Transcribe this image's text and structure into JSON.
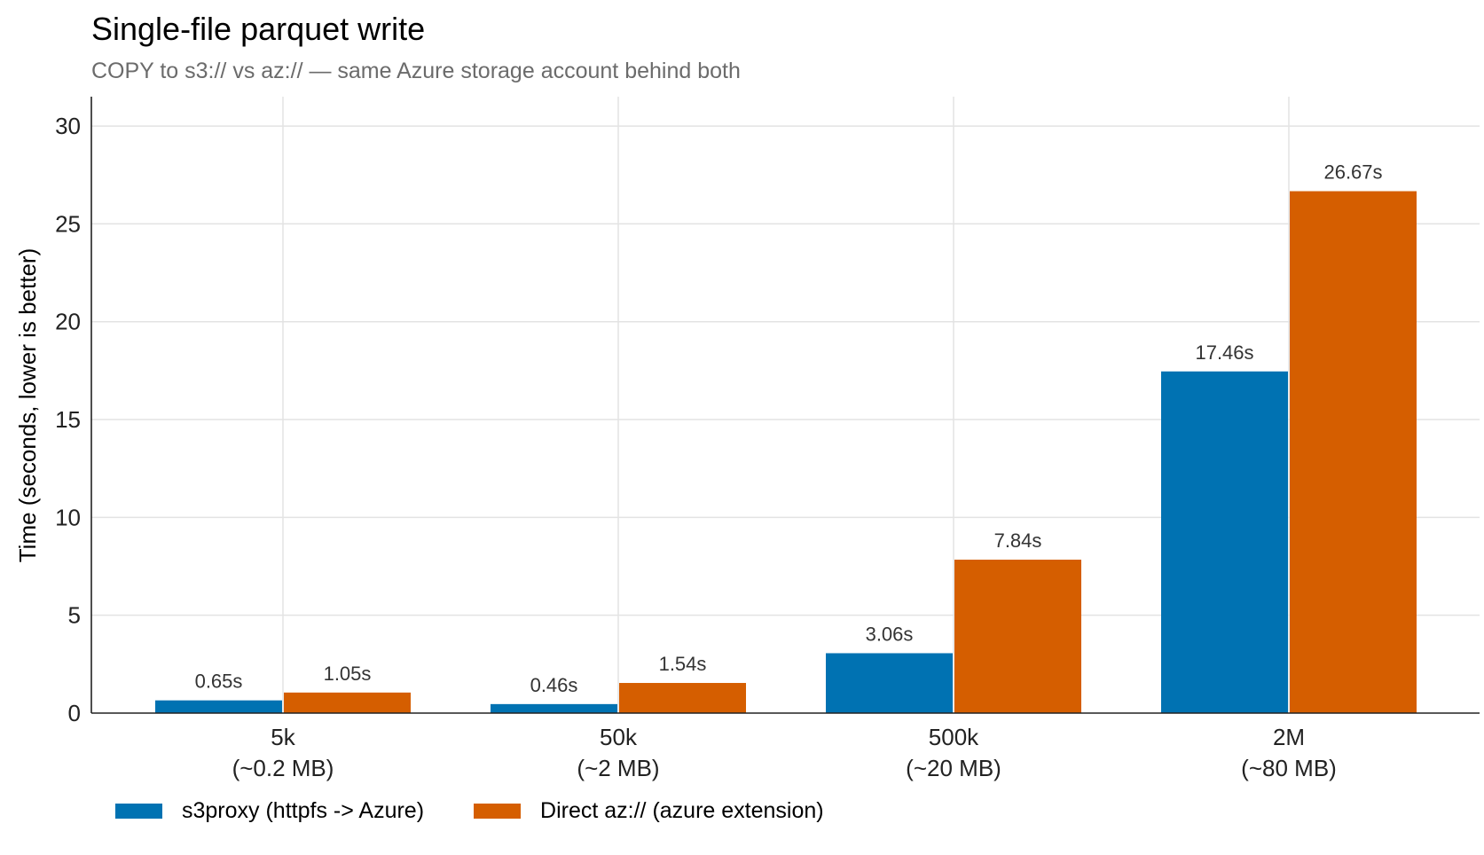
{
  "chart_data": {
    "type": "bar",
    "title": "Single-file parquet write",
    "subtitle": "COPY to s3:// vs az:// — same Azure storage account behind both",
    "xlabel": "",
    "ylabel": "Time (seconds, lower is better)",
    "ylim": [
      0,
      31.5
    ],
    "yticks": [
      "0",
      "5",
      "10",
      "15",
      "20",
      "25",
      "30"
    ],
    "categories": [
      [
        "5k",
        "(~0.2 MB)"
      ],
      [
        "50k",
        "(~2 MB)"
      ],
      [
        "500k",
        "(~20 MB)"
      ],
      [
        "2M",
        "(~80 MB)"
      ]
    ],
    "series": [
      {
        "name": "s3proxy (httpfs -> Azure)",
        "color": "#0072b2",
        "values": [
          0.65,
          0.46,
          3.06,
          17.46
        ],
        "labels": [
          "0.65s",
          "0.46s",
          "3.06s",
          "17.46s"
        ]
      },
      {
        "name": "Direct az:// (azure extension)",
        "color": "#d55e00",
        "values": [
          1.05,
          1.54,
          7.84,
          26.67
        ],
        "labels": [
          "1.05s",
          "1.54s",
          "7.84s",
          "26.67s"
        ]
      }
    ],
    "grid": true,
    "legend_position": "bottom-left"
  }
}
